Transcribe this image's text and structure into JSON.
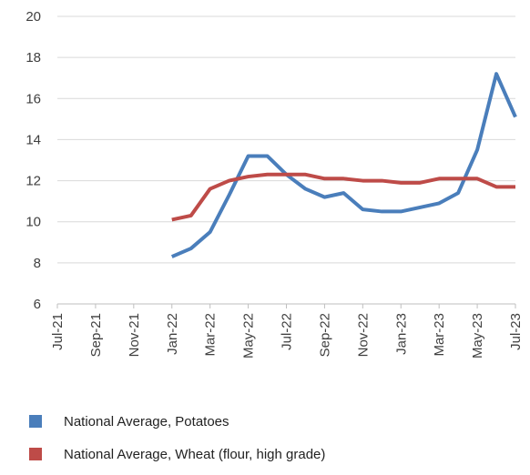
{
  "chart_data": {
    "type": "line",
    "title": "",
    "xlabel": "",
    "ylabel": "",
    "ylim": [
      6,
      20
    ],
    "y_ticks": [
      6,
      8,
      10,
      12,
      14,
      16,
      18,
      20
    ],
    "x": [
      "Jul-21",
      "Aug-21",
      "Sep-21",
      "Oct-21",
      "Nov-21",
      "Dec-21",
      "Jan-22",
      "Feb-22",
      "Mar-22",
      "Apr-22",
      "May-22",
      "Jun-22",
      "Jul-22",
      "Aug-22",
      "Sep-22",
      "Oct-22",
      "Nov-22",
      "Dec-22",
      "Jan-23",
      "Feb-23",
      "Mar-23",
      "Apr-23",
      "May-23",
      "Jun-23",
      "Jul-23"
    ],
    "x_tick_labels": [
      "Jul-21",
      "Sep-21",
      "Nov-21",
      "Jan-22",
      "Mar-22",
      "May-22",
      "Jul-22",
      "Sep-22",
      "Nov-22",
      "Jan-23",
      "Mar-23",
      "May-23",
      "Jul-23"
    ],
    "grid": true,
    "legend_position": "bottom",
    "series": [
      {
        "name": "National Average, Potatoes",
        "color": "#4a7ebb",
        "values": [
          null,
          null,
          null,
          null,
          null,
          null,
          8.3,
          8.7,
          9.5,
          11.3,
          13.2,
          13.2,
          12.3,
          11.6,
          11.2,
          11.4,
          10.6,
          10.5,
          10.5,
          10.7,
          10.9,
          11.4,
          13.5,
          17.2,
          15.1
        ]
      },
      {
        "name": "National Average, Wheat (flour, high grade)",
        "color": "#be4b48",
        "values": [
          null,
          null,
          null,
          null,
          null,
          null,
          10.1,
          10.3,
          11.6,
          12.0,
          12.2,
          12.3,
          12.3,
          12.3,
          12.1,
          12.1,
          12.0,
          12.0,
          11.9,
          11.9,
          12.1,
          12.1,
          12.1,
          11.7,
          11.7
        ]
      }
    ]
  }
}
